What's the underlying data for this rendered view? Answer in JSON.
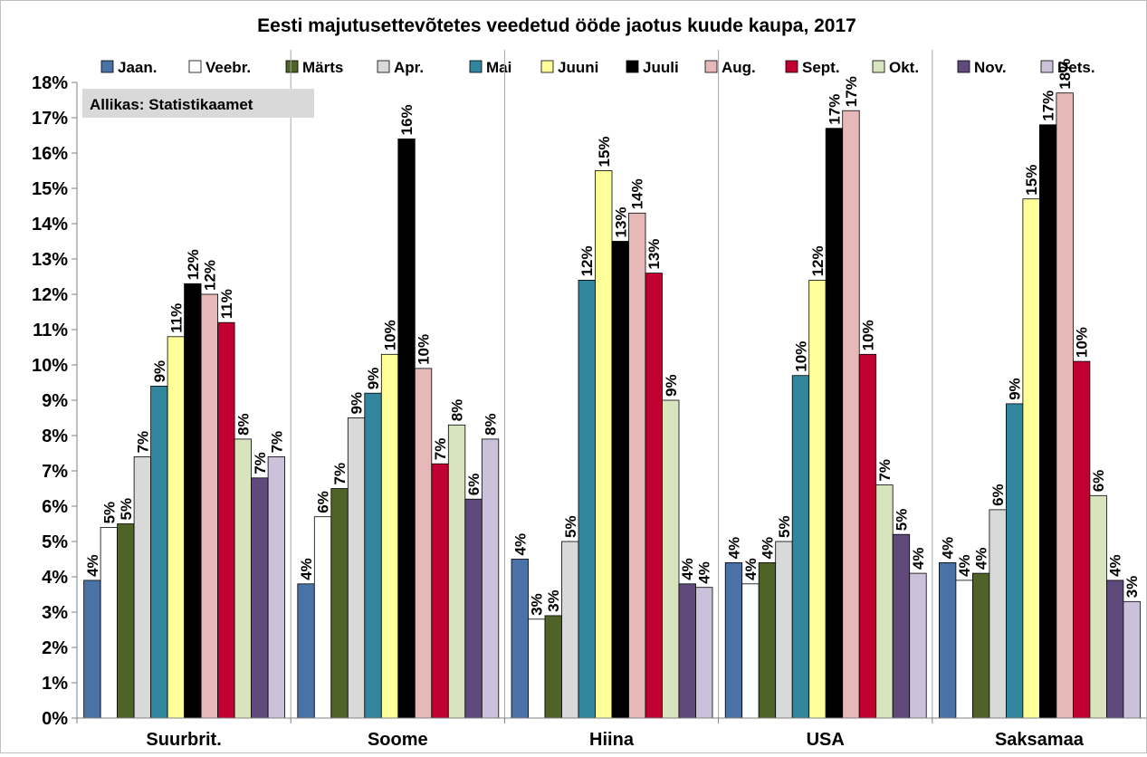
{
  "chart_data": {
    "type": "bar",
    "title": "Eesti majutusettevõtetes veedetud ööde jaotus kuude kaupa, 2017",
    "annotation": "Allikas: Statistikaamet",
    "categories": [
      "Suurbrit.",
      "Soome",
      "Hiina",
      "USA",
      "Saksamaa"
    ],
    "ylim": [
      0,
      18
    ],
    "yticks": [
      "0%",
      "1%",
      "2%",
      "3%",
      "4%",
      "5%",
      "6%",
      "7%",
      "8%",
      "9%",
      "10%",
      "11%",
      "12%",
      "13%",
      "14%",
      "15%",
      "16%",
      "17%",
      "18%"
    ],
    "grid": "vertical separators between categories",
    "legend_position": "top",
    "series": [
      {
        "name": "Jaan.",
        "color": "#4A72A6",
        "values": [
          3.9,
          3.8,
          4.5,
          4.4,
          4.4
        ],
        "labels": [
          "4%",
          "4%",
          "4%",
          "4%",
          "4%"
        ]
      },
      {
        "name": "Veebr.",
        "color": "#FFFFFF",
        "values": [
          5.4,
          5.7,
          2.8,
          3.8,
          3.9
        ],
        "labels": [
          "5%",
          "6%",
          "3%",
          "4%",
          "4%"
        ]
      },
      {
        "name": "Märts",
        "color": "#4F6228",
        "values": [
          5.5,
          6.5,
          2.9,
          4.4,
          4.1
        ],
        "labels": [
          "5%",
          "7%",
          "3%",
          "4%",
          "4%"
        ]
      },
      {
        "name": "Apr.",
        "color": "#D9D9D9",
        "values": [
          7.4,
          8.5,
          5.0,
          5.0,
          5.9
        ],
        "labels": [
          "7%",
          "9%",
          "5%",
          "5%",
          "6%"
        ]
      },
      {
        "name": "Mai",
        "color": "#31859C",
        "values": [
          9.4,
          9.2,
          12.4,
          9.7,
          8.9
        ],
        "labels": [
          "9%",
          "9%",
          "12%",
          "10%",
          "9%"
        ]
      },
      {
        "name": "Juuni",
        "color": "#FFFF99",
        "values": [
          10.8,
          10.3,
          15.5,
          12.4,
          14.7
        ],
        "labels": [
          "11%",
          "10%",
          "15%",
          "12%",
          "15%"
        ]
      },
      {
        "name": "Juuli",
        "color": "#000000",
        "values": [
          12.3,
          16.4,
          13.5,
          16.7,
          16.8
        ],
        "labels": [
          "12%",
          "16%",
          "13%",
          "17%",
          "17%"
        ]
      },
      {
        "name": "Aug.",
        "color": "#E6B9B8",
        "values": [
          12.0,
          9.9,
          14.3,
          17.2,
          17.7
        ],
        "labels": [
          "12%",
          "10%",
          "14%",
          "17%",
          "18%"
        ]
      },
      {
        "name": "Sept.",
        "color": "#C00030",
        "values": [
          11.2,
          7.2,
          12.6,
          10.3,
          10.1
        ],
        "labels": [
          "11%",
          "7%",
          "13%",
          "10%",
          "10%"
        ]
      },
      {
        "name": "Okt.",
        "color": "#D7E4BD",
        "values": [
          7.9,
          8.3,
          9.0,
          6.6,
          6.3
        ],
        "labels": [
          "8%",
          "8%",
          "9%",
          "7%",
          "6%"
        ]
      },
      {
        "name": "Nov.",
        "color": "#604A7B",
        "values": [
          6.8,
          6.2,
          3.8,
          5.2,
          3.9
        ],
        "labels": [
          "7%",
          "6%",
          "4%",
          "5%",
          "4%"
        ]
      },
      {
        "name": "Dets.",
        "color": "#CCC1DA",
        "values": [
          7.4,
          7.9,
          3.7,
          4.1,
          3.3
        ],
        "labels": [
          "7%",
          "8%",
          "4%",
          "4%",
          "3%"
        ]
      }
    ]
  }
}
